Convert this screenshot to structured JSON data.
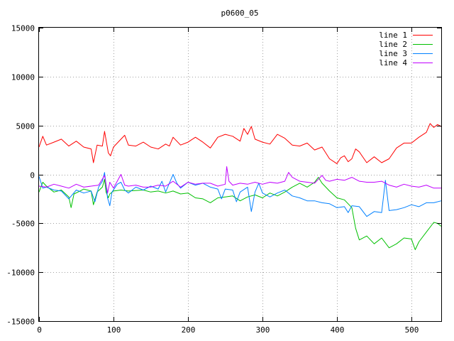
{
  "chart_data": {
    "type": "line",
    "title": "p0600_05",
    "xlabel": "",
    "ylabel": "",
    "xlim": [
      0,
      540
    ],
    "ylim": [
      -15000,
      15000
    ],
    "xticks": [
      0,
      100,
      200,
      300,
      400,
      500
    ],
    "yticks": [
      -15000,
      -10000,
      -5000,
      0,
      5000,
      10000,
      15000
    ],
    "grid": true,
    "legend_position": "top-right",
    "series": [
      {
        "name": "line 1",
        "color": "#ff0000",
        "points": [
          [
            0,
            2800
          ],
          [
            5,
            3900
          ],
          [
            10,
            3000
          ],
          [
            20,
            3300
          ],
          [
            30,
            3600
          ],
          [
            40,
            2900
          ],
          [
            50,
            3400
          ],
          [
            60,
            2800
          ],
          [
            70,
            2600
          ],
          [
            73,
            1200
          ],
          [
            78,
            3000
          ],
          [
            85,
            2900
          ],
          [
            88,
            4400
          ],
          [
            93,
            2200
          ],
          [
            96,
            1900
          ],
          [
            100,
            2800
          ],
          [
            110,
            3600
          ],
          [
            115,
            4000
          ],
          [
            120,
            3000
          ],
          [
            130,
            2900
          ],
          [
            140,
            3300
          ],
          [
            150,
            2800
          ],
          [
            160,
            2600
          ],
          [
            170,
            3100
          ],
          [
            175,
            2900
          ],
          [
            180,
            3800
          ],
          [
            190,
            3000
          ],
          [
            200,
            3300
          ],
          [
            210,
            3800
          ],
          [
            220,
            3300
          ],
          [
            230,
            2700
          ],
          [
            240,
            3800
          ],
          [
            250,
            4100
          ],
          [
            260,
            3900
          ],
          [
            270,
            3400
          ],
          [
            275,
            4700
          ],
          [
            280,
            4100
          ],
          [
            285,
            4900
          ],
          [
            290,
            3600
          ],
          [
            300,
            3300
          ],
          [
            310,
            3100
          ],
          [
            320,
            4100
          ],
          [
            330,
            3700
          ],
          [
            340,
            3000
          ],
          [
            350,
            2900
          ],
          [
            360,
            3200
          ],
          [
            370,
            2500
          ],
          [
            380,
            2800
          ],
          [
            390,
            1600
          ],
          [
            400,
            1100
          ],
          [
            405,
            1700
          ],
          [
            410,
            1900
          ],
          [
            415,
            1300
          ],
          [
            420,
            1600
          ],
          [
            425,
            2600
          ],
          [
            430,
            2300
          ],
          [
            440,
            1200
          ],
          [
            450,
            1800
          ],
          [
            460,
            1200
          ],
          [
            470,
            1600
          ],
          [
            480,
            2700
          ],
          [
            490,
            3200
          ],
          [
            500,
            3200
          ],
          [
            510,
            3800
          ],
          [
            520,
            4300
          ],
          [
            525,
            5200
          ],
          [
            530,
            4800
          ],
          [
            535,
            5100
          ],
          [
            540,
            4900
          ]
        ]
      },
      {
        "name": "line 2",
        "color": "#00c000",
        "points": [
          [
            0,
            -1800
          ],
          [
            5,
            -800
          ],
          [
            10,
            -1200
          ],
          [
            20,
            -1800
          ],
          [
            30,
            -1600
          ],
          [
            40,
            -2300
          ],
          [
            43,
            -3400
          ],
          [
            47,
            -2000
          ],
          [
            55,
            -1700
          ],
          [
            60,
            -1500
          ],
          [
            70,
            -1700
          ],
          [
            73,
            -3100
          ],
          [
            78,
            -1800
          ],
          [
            85,
            -1300
          ],
          [
            88,
            -500
          ],
          [
            90,
            -1800
          ],
          [
            93,
            -2400
          ],
          [
            95,
            -2000
          ],
          [
            100,
            -1700
          ],
          [
            110,
            -1600
          ],
          [
            120,
            -1700
          ],
          [
            140,
            -1600
          ],
          [
            150,
            -1800
          ],
          [
            160,
            -1700
          ],
          [
            170,
            -1900
          ],
          [
            180,
            -1700
          ],
          [
            190,
            -2000
          ],
          [
            200,
            -1900
          ],
          [
            210,
            -2400
          ],
          [
            220,
            -2500
          ],
          [
            230,
            -2900
          ],
          [
            240,
            -2400
          ],
          [
            250,
            -2300
          ],
          [
            260,
            -2200
          ],
          [
            270,
            -2700
          ],
          [
            280,
            -2300
          ],
          [
            290,
            -2100
          ],
          [
            300,
            -2400
          ],
          [
            310,
            -1900
          ],
          [
            320,
            -2200
          ],
          [
            330,
            -1800
          ],
          [
            340,
            -1300
          ],
          [
            350,
            -900
          ],
          [
            360,
            -1300
          ],
          [
            370,
            -800
          ],
          [
            375,
            -300
          ],
          [
            380,
            -900
          ],
          [
            390,
            -1700
          ],
          [
            400,
            -2400
          ],
          [
            410,
            -2600
          ],
          [
            420,
            -3400
          ],
          [
            425,
            -5500
          ],
          [
            430,
            -6700
          ],
          [
            440,
            -6300
          ],
          [
            450,
            -7100
          ],
          [
            460,
            -6500
          ],
          [
            470,
            -7500
          ],
          [
            480,
            -7100
          ],
          [
            490,
            -6500
          ],
          [
            500,
            -6600
          ],
          [
            505,
            -7700
          ],
          [
            510,
            -6900
          ],
          [
            520,
            -5900
          ],
          [
            530,
            -4900
          ],
          [
            535,
            -5000
          ],
          [
            540,
            -5300
          ]
        ]
      },
      {
        "name": "line 3",
        "color": "#0080ff",
        "points": [
          [
            0,
            -200
          ],
          [
            5,
            -1400
          ],
          [
            10,
            -1300
          ],
          [
            20,
            -1600
          ],
          [
            30,
            -1700
          ],
          [
            40,
            -2500
          ],
          [
            50,
            -1600
          ],
          [
            60,
            -1900
          ],
          [
            70,
            -1700
          ],
          [
            75,
            -2800
          ],
          [
            80,
            -1300
          ],
          [
            85,
            -700
          ],
          [
            88,
            200
          ],
          [
            92,
            -2400
          ],
          [
            95,
            -3200
          ],
          [
            98,
            -1800
          ],
          [
            105,
            -1000
          ],
          [
            110,
            -800
          ],
          [
            115,
            -1600
          ],
          [
            120,
            -1900
          ],
          [
            130,
            -1300
          ],
          [
            140,
            -1600
          ],
          [
            150,
            -1200
          ],
          [
            160,
            -1500
          ],
          [
            165,
            -700
          ],
          [
            170,
            -1800
          ],
          [
            180,
            0
          ],
          [
            185,
            -900
          ],
          [
            190,
            -1400
          ],
          [
            200,
            -800
          ],
          [
            210,
            -1100
          ],
          [
            220,
            -900
          ],
          [
            230,
            -1300
          ],
          [
            240,
            -1500
          ],
          [
            245,
            -2500
          ],
          [
            250,
            -1500
          ],
          [
            260,
            -1600
          ],
          [
            265,
            -2800
          ],
          [
            270,
            -1800
          ],
          [
            280,
            -1300
          ],
          [
            285,
            -3800
          ],
          [
            290,
            -1800
          ],
          [
            295,
            -900
          ],
          [
            300,
            -1900
          ],
          [
            310,
            -2300
          ],
          [
            320,
            -1900
          ],
          [
            330,
            -1600
          ],
          [
            340,
            -2200
          ],
          [
            350,
            -2400
          ],
          [
            360,
            -2700
          ],
          [
            370,
            -2700
          ],
          [
            380,
            -2900
          ],
          [
            390,
            -3000
          ],
          [
            400,
            -3400
          ],
          [
            410,
            -3300
          ],
          [
            415,
            -3900
          ],
          [
            420,
            -3200
          ],
          [
            430,
            -3300
          ],
          [
            440,
            -4300
          ],
          [
            450,
            -3800
          ],
          [
            460,
            -3900
          ],
          [
            465,
            -600
          ],
          [
            470,
            -3700
          ],
          [
            480,
            -3600
          ],
          [
            490,
            -3400
          ],
          [
            500,
            -3100
          ],
          [
            510,
            -3300
          ],
          [
            520,
            -2900
          ],
          [
            530,
            -2900
          ],
          [
            540,
            -2700
          ]
        ]
      },
      {
        "name": "line 4",
        "color": "#c000ff",
        "points": [
          [
            0,
            -1200
          ],
          [
            10,
            -1300
          ],
          [
            20,
            -1000
          ],
          [
            30,
            -1200
          ],
          [
            40,
            -1400
          ],
          [
            50,
            -1000
          ],
          [
            60,
            -1300
          ],
          [
            70,
            -1200
          ],
          [
            80,
            -1100
          ],
          [
            88,
            -100
          ],
          [
            92,
            -1900
          ],
          [
            95,
            -800
          ],
          [
            100,
            -1400
          ],
          [
            110,
            0
          ],
          [
            115,
            -1100
          ],
          [
            120,
            -1200
          ],
          [
            130,
            -1100
          ],
          [
            140,
            -1300
          ],
          [
            150,
            -1300
          ],
          [
            160,
            -1100
          ],
          [
            170,
            -1200
          ],
          [
            180,
            -700
          ],
          [
            190,
            -1300
          ],
          [
            200,
            -800
          ],
          [
            210,
            -1000
          ],
          [
            220,
            -900
          ],
          [
            230,
            -900
          ],
          [
            240,
            -1200
          ],
          [
            250,
            -1000
          ],
          [
            252,
            800
          ],
          [
            255,
            -700
          ],
          [
            260,
            -1100
          ],
          [
            270,
            -900
          ],
          [
            280,
            -1000
          ],
          [
            290,
            -800
          ],
          [
            300,
            -1000
          ],
          [
            310,
            -800
          ],
          [
            320,
            -900
          ],
          [
            330,
            -700
          ],
          [
            335,
            200
          ],
          [
            340,
            -300
          ],
          [
            350,
            -700
          ],
          [
            360,
            -800
          ],
          [
            370,
            -900
          ],
          [
            380,
            -100
          ],
          [
            385,
            -600
          ],
          [
            390,
            -700
          ],
          [
            400,
            -500
          ],
          [
            410,
            -600
          ],
          [
            420,
            -300
          ],
          [
            430,
            -700
          ],
          [
            440,
            -800
          ],
          [
            450,
            -800
          ],
          [
            460,
            -700
          ],
          [
            470,
            -1100
          ],
          [
            480,
            -1300
          ],
          [
            490,
            -1000
          ],
          [
            500,
            -1200
          ],
          [
            510,
            -1300
          ],
          [
            520,
            -1100
          ],
          [
            530,
            -1400
          ],
          [
            540,
            -1400
          ]
        ]
      }
    ]
  }
}
